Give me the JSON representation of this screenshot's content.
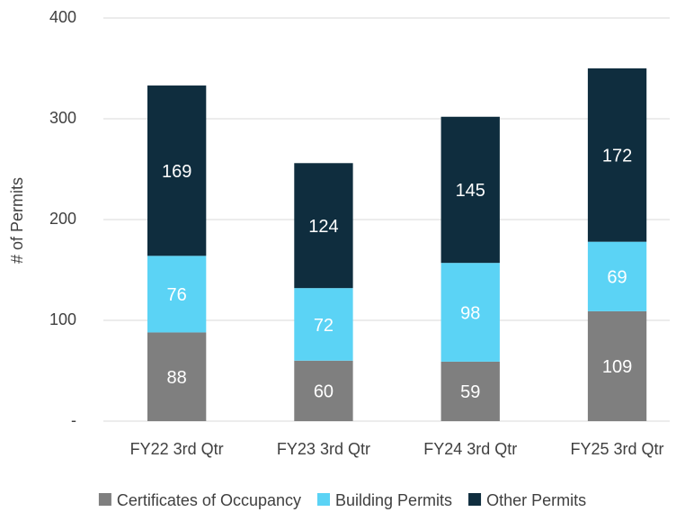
{
  "chart_data": {
    "type": "stacked_bar",
    "y_axis_label": "# of Permits",
    "categories": [
      "FY22 3rd Qtr",
      "FY23 3rd Qtr",
      "FY24 3rd Qtr",
      "FY25 3rd Qtr"
    ],
    "series": [
      {
        "name": "Certificates of Occupancy",
        "color": "#7f7f7f",
        "values": [
          88,
          60,
          59,
          109
        ]
      },
      {
        "name": "Building Permits",
        "color": "#5bd3f5",
        "values": [
          76,
          72,
          98,
          69
        ]
      },
      {
        "name": "Other Permits",
        "color": "#0f2d3e",
        "values": [
          169,
          124,
          145,
          172
        ]
      }
    ],
    "ylim": [
      0,
      400
    ],
    "yticks": [
      {
        "value": 0,
        "label": "-"
      },
      100,
      200,
      300,
      400
    ],
    "grid": true,
    "legend": "bottom"
  }
}
